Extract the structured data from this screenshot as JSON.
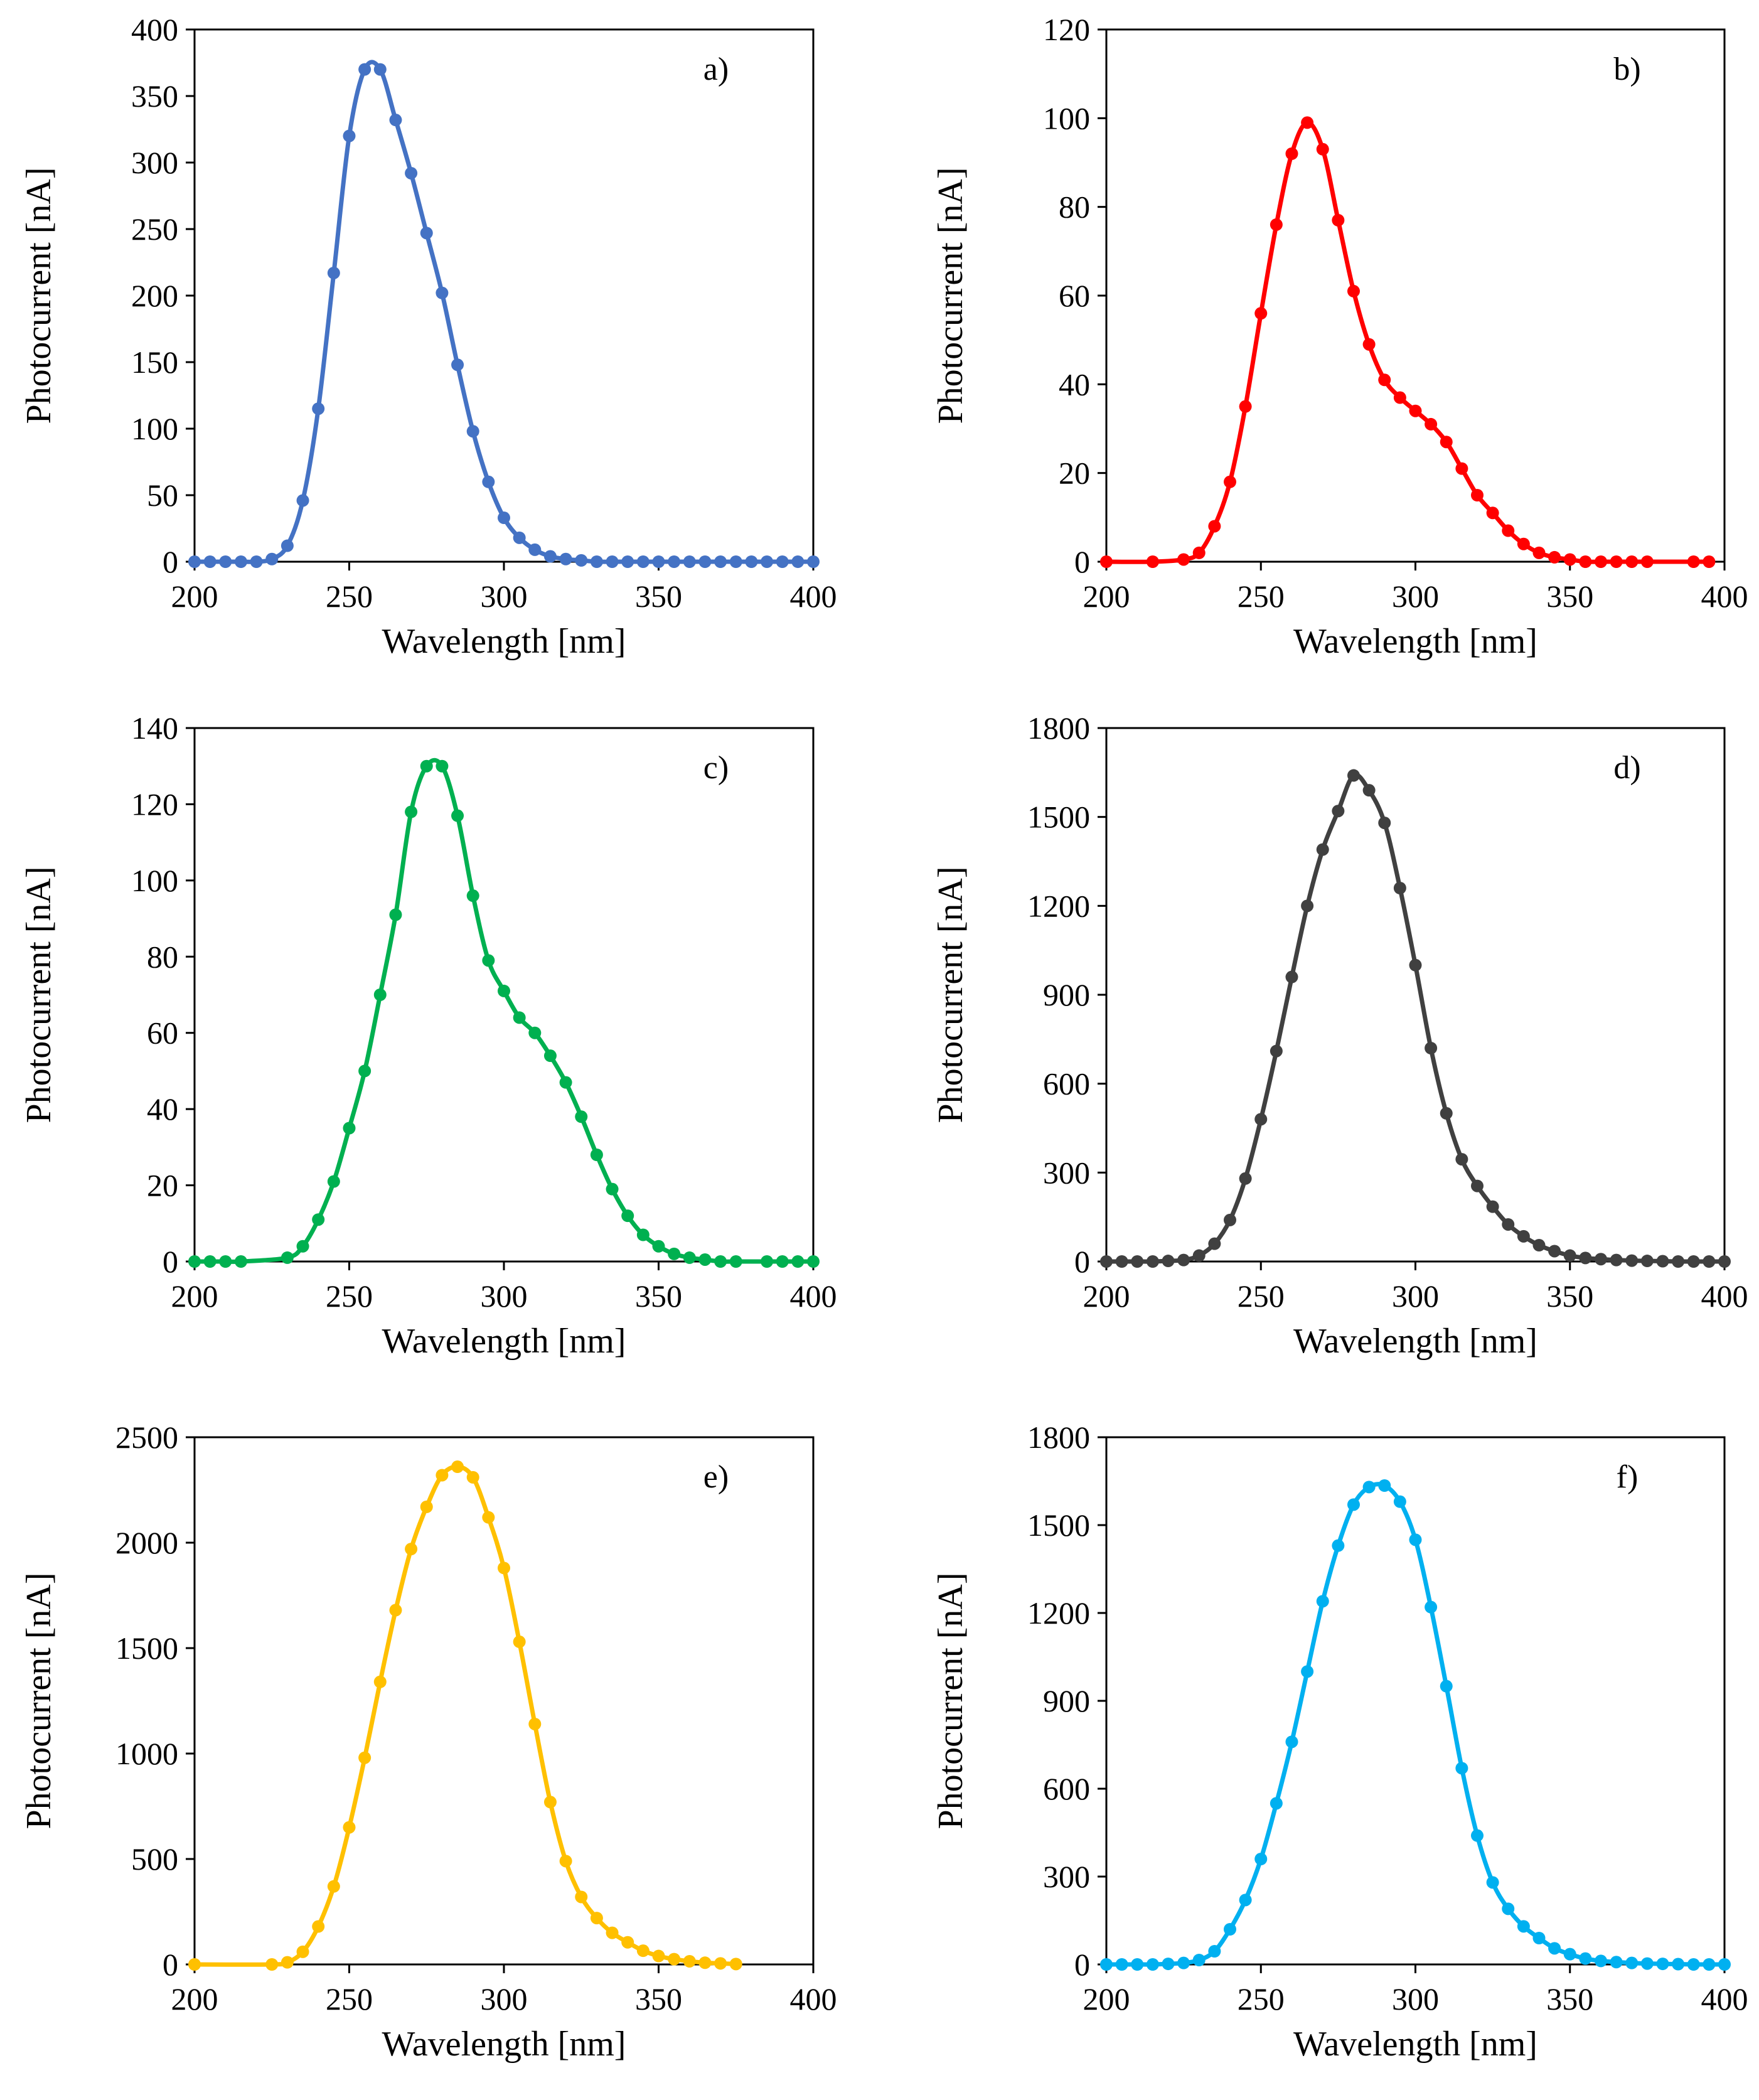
{
  "figure": {
    "panels": [
      "a",
      "b",
      "c",
      "d",
      "e",
      "f"
    ]
  },
  "chart_data": [
    {
      "id": "a",
      "panel_label": "a)",
      "type": "line",
      "color": "#4472C4",
      "xlabel": "Wavelength [nm]",
      "ylabel": "Photocurrent [nA]",
      "xlim": [
        200,
        400
      ],
      "ylim": [
        0,
        400
      ],
      "xticks": [
        200,
        250,
        300,
        350,
        400
      ],
      "yticks": [
        0,
        50,
        100,
        150,
        200,
        250,
        300,
        350,
        400
      ],
      "x": [
        200,
        205,
        210,
        215,
        220,
        225,
        230,
        235,
        240,
        245,
        250,
        255,
        260,
        265,
        270,
        275,
        280,
        285,
        290,
        295,
        300,
        305,
        310,
        315,
        320,
        325,
        330,
        335,
        340,
        345,
        350,
        355,
        360,
        365,
        370,
        375,
        380,
        385,
        390,
        395,
        400
      ],
      "y": [
        0,
        0,
        0,
        0,
        0,
        2,
        12,
        46,
        115,
        217,
        320,
        370,
        370,
        332,
        292,
        247,
        202,
        148,
        98,
        60,
        33,
        18,
        9,
        4,
        2,
        1,
        0,
        0,
        0,
        0,
        0,
        0,
        0,
        0,
        0,
        0,
        0,
        0,
        0,
        0,
        0
      ]
    },
    {
      "id": "b",
      "panel_label": "b)",
      "type": "line",
      "color": "#FF0000",
      "xlabel": "Wavelength [nm]",
      "ylabel": "Photocurrent [nA]",
      "xlim": [
        200,
        400
      ],
      "ylim": [
        0,
        120
      ],
      "xticks": [
        200,
        250,
        300,
        350,
        400
      ],
      "yticks": [
        0,
        20,
        40,
        60,
        80,
        100,
        120
      ],
      "x": [
        200,
        215,
        225,
        230,
        235,
        240,
        245,
        250,
        255,
        260,
        265,
        270,
        275,
        280,
        285,
        290,
        295,
        300,
        305,
        310,
        315,
        320,
        325,
        330,
        335,
        340,
        345,
        350,
        355,
        360,
        365,
        370,
        375,
        390,
        395
      ],
      "y": [
        0,
        0,
        0.5,
        2,
        8,
        18,
        35,
        56,
        76,
        92,
        99,
        93,
        77,
        61,
        49,
        41,
        37,
        34,
        31,
        27,
        21,
        15,
        11,
        7,
        4,
        2,
        1,
        0.5,
        0,
        0,
        0,
        0,
        0,
        0,
        0
      ]
    },
    {
      "id": "c",
      "panel_label": "c)",
      "type": "line",
      "color": "#00B050",
      "xlabel": "Wavelength [nm]",
      "ylabel": "Photocurrent [nA]",
      "xlim": [
        200,
        400
      ],
      "ylim": [
        0,
        140
      ],
      "xticks": [
        200,
        250,
        300,
        350,
        400
      ],
      "yticks": [
        0,
        20,
        40,
        60,
        80,
        100,
        120,
        140
      ],
      "x": [
        200,
        205,
        210,
        215,
        230,
        235,
        240,
        245,
        250,
        255,
        260,
        265,
        270,
        275,
        280,
        285,
        290,
        295,
        300,
        305,
        310,
        315,
        320,
        325,
        330,
        335,
        340,
        345,
        350,
        355,
        360,
        365,
        370,
        375,
        385,
        390,
        395,
        400
      ],
      "y": [
        0,
        0,
        0,
        0,
        1,
        4,
        11,
        21,
        35,
        50,
        70,
        91,
        118,
        130,
        130,
        117,
        96,
        79,
        71,
        64,
        60,
        54,
        47,
        38,
        28,
        19,
        12,
        7,
        4,
        2,
        1,
        0.5,
        0,
        0,
        0,
        0,
        0,
        0
      ]
    },
    {
      "id": "d",
      "panel_label": "d)",
      "type": "line",
      "color": "#404040",
      "xlabel": "Wavelength [nm]",
      "ylabel": "Photocurrent [nA]",
      "xlim": [
        200,
        400
      ],
      "ylim": [
        0,
        1800
      ],
      "xticks": [
        200,
        250,
        300,
        350,
        400
      ],
      "yticks": [
        0,
        300,
        600,
        900,
        1200,
        1500,
        1800
      ],
      "x": [
        200,
        205,
        210,
        215,
        220,
        225,
        230,
        235,
        240,
        245,
        250,
        255,
        260,
        265,
        270,
        275,
        280,
        285,
        290,
        295,
        300,
        305,
        310,
        315,
        320,
        325,
        330,
        335,
        340,
        345,
        350,
        355,
        360,
        365,
        370,
        375,
        380,
        385,
        390,
        395,
        400
      ],
      "y": [
        0,
        0,
        0,
        0,
        2,
        5,
        20,
        60,
        140,
        280,
        480,
        710,
        960,
        1200,
        1390,
        1520,
        1640,
        1590,
        1480,
        1260,
        1000,
        720,
        500,
        345,
        255,
        185,
        125,
        85,
        55,
        35,
        20,
        12,
        8,
        5,
        3,
        2,
        1,
        0,
        0,
        0,
        0
      ]
    },
    {
      "id": "e",
      "panel_label": "e)",
      "type": "line",
      "color": "#FFC000",
      "xlabel": "Wavelength [nm]",
      "ylabel": "Photocurrent [nA]",
      "xlim": [
        200,
        400
      ],
      "ylim": [
        0,
        2500
      ],
      "xticks": [
        200,
        250,
        300,
        350,
        400
      ],
      "yticks": [
        0,
        500,
        1000,
        1500,
        2000,
        2500
      ],
      "x": [
        200,
        225,
        230,
        235,
        240,
        245,
        250,
        255,
        260,
        265,
        270,
        275,
        280,
        285,
        290,
        295,
        300,
        305,
        310,
        315,
        320,
        325,
        330,
        335,
        340,
        345,
        350,
        355,
        360,
        365,
        370,
        375
      ],
      "y": [
        0,
        0,
        10,
        60,
        180,
        370,
        650,
        980,
        1340,
        1680,
        1970,
        2170,
        2320,
        2360,
        2310,
        2120,
        1880,
        1530,
        1140,
        770,
        490,
        320,
        220,
        150,
        105,
        65,
        40,
        25,
        15,
        8,
        5,
        2
      ]
    },
    {
      "id": "f",
      "panel_label": "f)",
      "type": "line",
      "color": "#00B0F0",
      "xlabel": "Wavelength [nm]",
      "ylabel": "Photocurrent [nA]",
      "xlim": [
        200,
        400
      ],
      "ylim": [
        0,
        1800
      ],
      "xticks": [
        200,
        250,
        300,
        350,
        400
      ],
      "yticks": [
        0,
        300,
        600,
        900,
        1200,
        1500,
        1800
      ],
      "x": [
        200,
        205,
        210,
        215,
        220,
        225,
        230,
        235,
        240,
        245,
        250,
        255,
        260,
        265,
        270,
        275,
        280,
        285,
        290,
        295,
        300,
        305,
        310,
        315,
        320,
        325,
        330,
        335,
        340,
        345,
        350,
        355,
        360,
        365,
        370,
        375,
        380,
        385,
        390,
        395,
        400
      ],
      "y": [
        0,
        0,
        0,
        0,
        2,
        5,
        15,
        45,
        120,
        220,
        360,
        550,
        760,
        1000,
        1240,
        1430,
        1570,
        1630,
        1635,
        1580,
        1450,
        1220,
        950,
        670,
        440,
        280,
        190,
        130,
        90,
        55,
        35,
        20,
        12,
        8,
        5,
        3,
        2,
        1,
        0,
        0,
        0
      ]
    }
  ]
}
